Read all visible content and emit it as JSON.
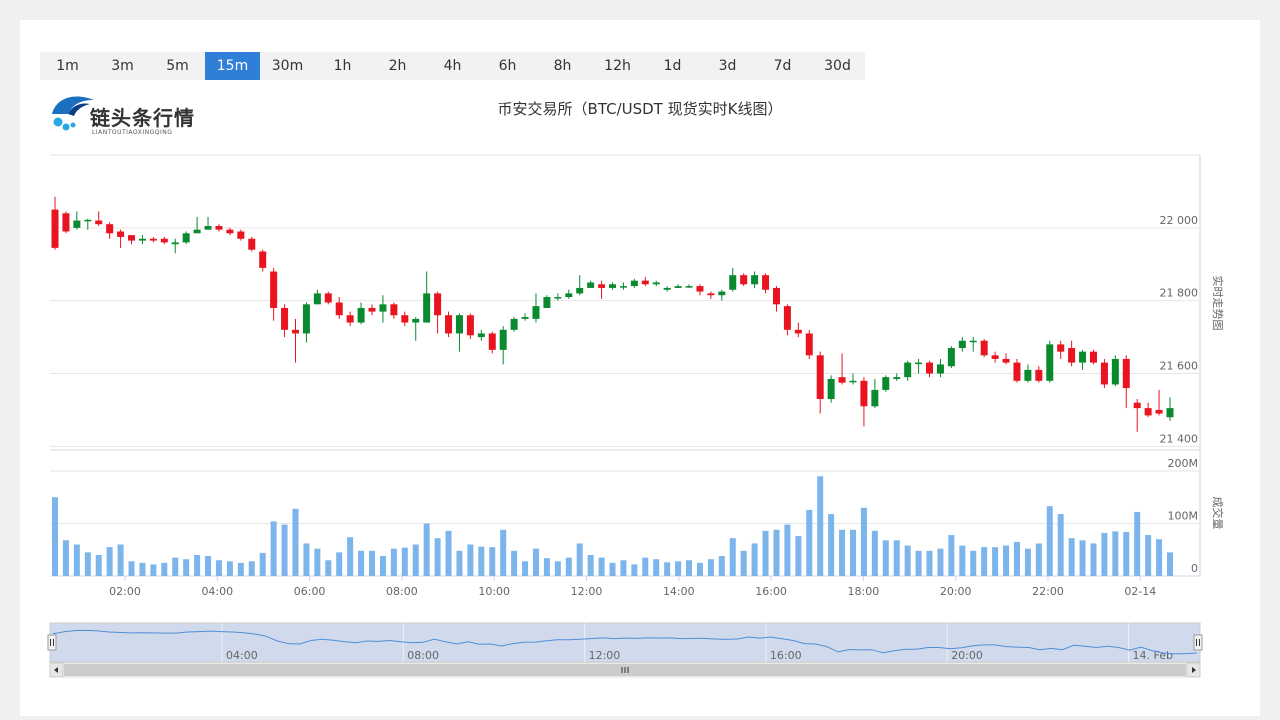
{
  "toolbar": {
    "intervals": [
      "1m",
      "3m",
      "5m",
      "15m",
      "30m",
      "1h",
      "2h",
      "4h",
      "6h",
      "8h",
      "12h",
      "1d",
      "3d",
      "7d",
      "30d"
    ],
    "active": "15m"
  },
  "logo": {
    "name": "链头条行情",
    "sub": "LIANTOUTIAOXINGQING"
  },
  "chart_data": {
    "type": "candlestick",
    "title": "币安交易所（BTC/USDT 现货实时K线图）",
    "price_axis_label": "实时走势图",
    "volume_axis_label": "成交量",
    "price_ticks": [
      "22 000",
      "21 800",
      "21 600",
      "21 400"
    ],
    "price_tick_values": [
      22000,
      21800,
      21600,
      21400
    ],
    "price_range": [
      21390,
      22200
    ],
    "volume_ticks": [
      "200M",
      "100M",
      "0"
    ],
    "volume_tick_values": [
      200,
      100,
      0
    ],
    "volume_range": [
      0,
      240
    ],
    "x_ticks": [
      "02:00",
      "04:00",
      "06:00",
      "08:00",
      "10:00",
      "12:00",
      "14:00",
      "16:00",
      "18:00",
      "20:00",
      "22:00",
      "02-14"
    ],
    "navigator_ticks": [
      "04:00",
      "08:00",
      "12:00",
      "16:00",
      "20:00",
      "14. Feb"
    ],
    "up_color": "#0a8a2e",
    "down_color": "#e8141f",
    "volume_color": "#7cb5ec",
    "candles": [
      [
        22050,
        21945,
        22085,
        21940,
        150
      ],
      [
        22040,
        21990,
        22045,
        21985,
        68
      ],
      [
        22000,
        22020,
        22045,
        21995,
        60
      ],
      [
        22020,
        22022,
        22025,
        21995,
        45
      ],
      [
        22020,
        22010,
        22045,
        22005,
        40
      ],
      [
        22010,
        21985,
        22015,
        21970,
        55
      ],
      [
        21990,
        21975,
        21995,
        21945,
        60
      ],
      [
        21980,
        21965,
        21980,
        21955,
        28
      ],
      [
        21965,
        21970,
        21980,
        21955,
        25
      ],
      [
        21970,
        21965,
        21975,
        21960,
        22
      ],
      [
        21970,
        21960,
        21975,
        21955,
        25
      ],
      [
        21955,
        21960,
        21970,
        21930,
        35
      ],
      [
        21960,
        21985,
        21990,
        21955,
        32
      ],
      [
        21985,
        21995,
        22030,
        21990,
        40
      ],
      [
        21995,
        22005,
        22030,
        21995,
        38
      ],
      [
        22005,
        21995,
        22010,
        21990,
        30
      ],
      [
        21995,
        21985,
        22000,
        21980,
        28
      ],
      [
        21990,
        21970,
        21995,
        21965,
        25
      ],
      [
        21970,
        21940,
        21975,
        21935,
        28
      ],
      [
        21935,
        21890,
        21940,
        21880,
        44
      ],
      [
        21880,
        21780,
        21890,
        21745,
        104
      ],
      [
        21780,
        21720,
        21790,
        21700,
        98
      ],
      [
        21720,
        21710,
        21750,
        21630,
        128
      ],
      [
        21710,
        21790,
        21795,
        21685,
        62
      ],
      [
        21790,
        21820,
        21830,
        21790,
        52
      ],
      [
        21820,
        21795,
        21825,
        21790,
        30
      ],
      [
        21795,
        21760,
        21810,
        21750,
        45
      ],
      [
        21760,
        21740,
        21770,
        21730,
        74
      ],
      [
        21740,
        21780,
        21795,
        21735,
        48
      ],
      [
        21780,
        21770,
        21790,
        21760,
        48
      ],
      [
        21770,
        21790,
        21815,
        21740,
        38
      ],
      [
        21790,
        21760,
        21795,
        21750,
        52
      ],
      [
        21760,
        21740,
        21770,
        21730,
        54
      ],
      [
        21740,
        21750,
        21755,
        21690,
        60
      ],
      [
        21740,
        21820,
        21880,
        21740,
        100
      ],
      [
        21820,
        21760,
        21825,
        21710,
        72
      ],
      [
        21760,
        21710,
        21770,
        21700,
        86
      ],
      [
        21710,
        21760,
        21765,
        21660,
        48
      ],
      [
        21760,
        21705,
        21765,
        21695,
        60
      ],
      [
        21700,
        21710,
        21720,
        21690,
        56
      ],
      [
        21710,
        21665,
        21715,
        21655,
        55
      ],
      [
        21665,
        21720,
        21730,
        21625,
        88
      ],
      [
        21720,
        21750,
        21755,
        21715,
        48
      ],
      [
        21750,
        21755,
        21765,
        21745,
        28
      ],
      [
        21750,
        21785,
        21820,
        21740,
        52
      ],
      [
        21780,
        21810,
        21815,
        21780,
        34
      ],
      [
        21810,
        21810,
        21820,
        21800,
        28
      ],
      [
        21810,
        21820,
        21830,
        21805,
        35
      ],
      [
        21820,
        21835,
        21870,
        21815,
        62
      ],
      [
        21835,
        21850,
        21855,
        21835,
        40
      ],
      [
        21845,
        21835,
        21855,
        21805,
        35
      ],
      [
        21835,
        21845,
        21850,
        21830,
        25
      ],
      [
        21840,
        21840,
        21850,
        21830,
        30
      ],
      [
        21840,
        21855,
        21860,
        21835,
        22
      ],
      [
        21855,
        21845,
        21865,
        21840,
        35
      ],
      [
        21845,
        21850,
        21855,
        21840,
        32
      ],
      [
        21830,
        21835,
        21840,
        21825,
        26
      ],
      [
        21835,
        21840,
        21845,
        21835,
        28
      ],
      [
        21840,
        21840,
        21845,
        21835,
        30
      ],
      [
        21840,
        21825,
        21845,
        21815,
        25
      ],
      [
        21820,
        21815,
        21825,
        21805,
        32
      ],
      [
        21815,
        21825,
        21830,
        21800,
        38
      ],
      [
        21830,
        21870,
        21890,
        21825,
        72
      ],
      [
        21870,
        21845,
        21875,
        21840,
        48
      ],
      [
        21845,
        21870,
        21880,
        21835,
        62
      ],
      [
        21870,
        21830,
        21875,
        21820,
        86
      ],
      [
        21835,
        21790,
        21840,
        21770,
        88
      ],
      [
        21785,
        21720,
        21790,
        21705,
        98
      ],
      [
        21720,
        21710,
        21740,
        21700,
        76
      ],
      [
        21710,
        21650,
        21720,
        21640,
        126
      ],
      [
        21650,
        21530,
        21660,
        21490,
        190
      ],
      [
        21530,
        21585,
        21595,
        21520,
        118
      ],
      [
        21590,
        21575,
        21655,
        21570,
        88
      ],
      [
        21580,
        21580,
        21600,
        21570,
        88
      ],
      [
        21580,
        21510,
        21590,
        21455,
        130
      ],
      [
        21510,
        21555,
        21585,
        21505,
        86
      ],
      [
        21555,
        21590,
        21595,
        21550,
        68
      ],
      [
        21585,
        21590,
        21600,
        21580,
        68
      ],
      [
        21590,
        21630,
        21635,
        21580,
        58
      ],
      [
        21630,
        21630,
        21640,
        21600,
        48
      ],
      [
        21630,
        21600,
        21635,
        21590,
        48
      ],
      [
        21600,
        21625,
        21640,
        21590,
        52
      ],
      [
        21620,
        21670,
        21675,
        21615,
        78
      ],
      [
        21670,
        21690,
        21700,
        21660,
        58
      ],
      [
        21690,
        21690,
        21700,
        21660,
        48
      ],
      [
        21690,
        21650,
        21695,
        21645,
        55
      ],
      [
        21650,
        21640,
        21660,
        21630,
        55
      ],
      [
        21640,
        21630,
        21655,
        21625,
        58
      ],
      [
        21630,
        21580,
        21640,
        21575,
        65
      ],
      [
        21580,
        21610,
        21625,
        21575,
        52
      ],
      [
        21610,
        21580,
        21620,
        21575,
        62
      ],
      [
        21580,
        21680,
        21690,
        21575,
        133
      ],
      [
        21680,
        21660,
        21690,
        21640,
        118
      ],
      [
        21670,
        21630,
        21690,
        21620,
        72
      ],
      [
        21630,
        21660,
        21665,
        21610,
        68
      ],
      [
        21660,
        21630,
        21665,
        21625,
        62
      ],
      [
        21630,
        21570,
        21640,
        21560,
        82
      ],
      [
        21570,
        21640,
        21650,
        21565,
        85
      ],
      [
        21640,
        21560,
        21650,
        21505,
        84
      ],
      [
        21520,
        21505,
        21530,
        21440,
        122
      ],
      [
        21505,
        21485,
        21520,
        21480,
        78
      ],
      [
        21500,
        21490,
        21555,
        21485,
        70
      ],
      [
        21480,
        21505,
        21535,
        21470,
        45
      ]
    ]
  }
}
